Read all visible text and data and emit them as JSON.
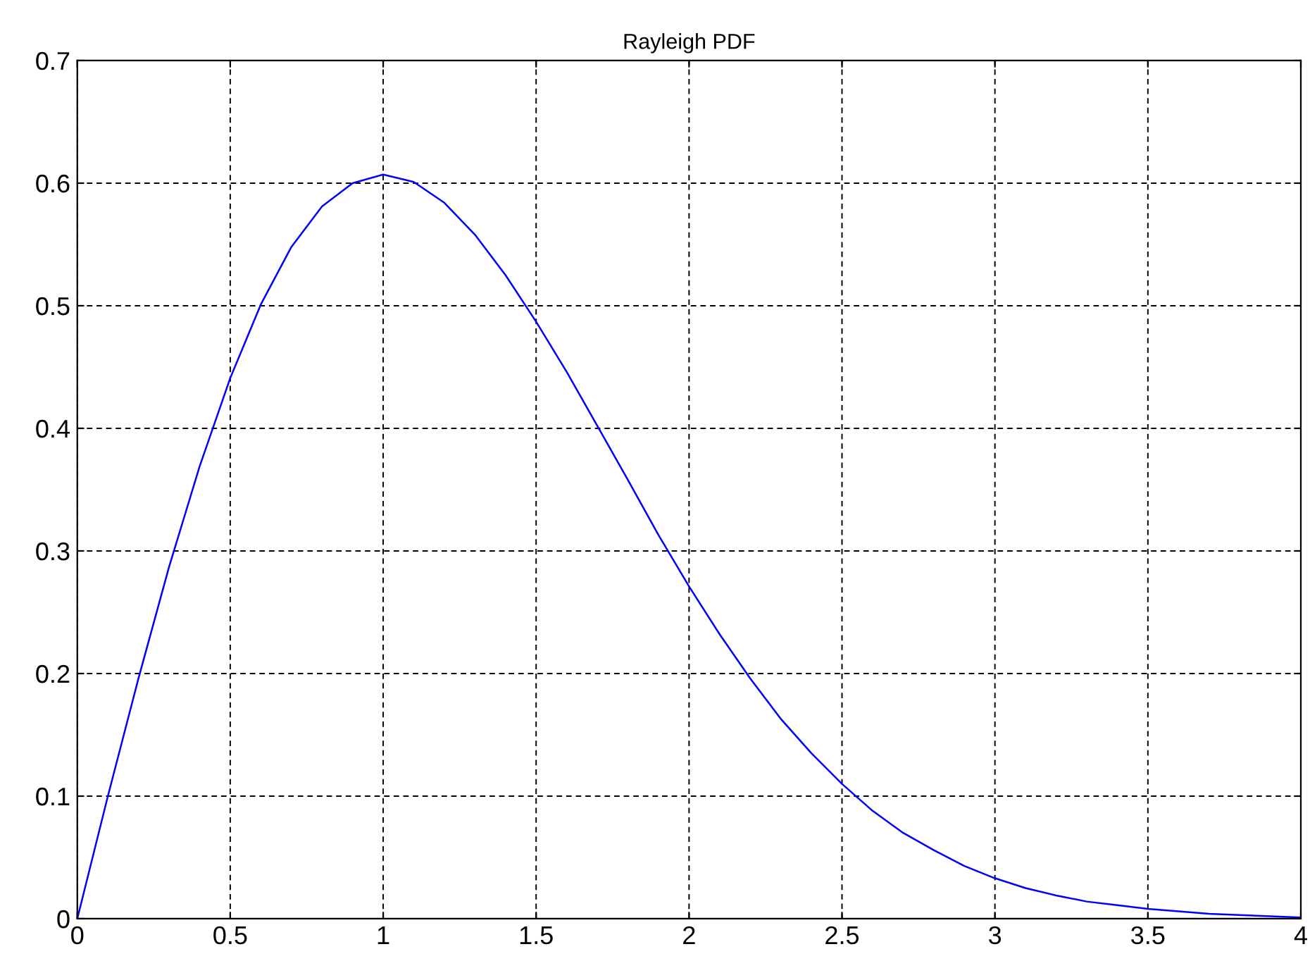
{
  "chart_data": {
    "type": "line",
    "title": "Rayleigh PDF",
    "x": [
      0,
      0.1,
      0.2,
      0.3,
      0.4,
      0.5,
      0.6,
      0.7,
      0.8,
      0.9,
      1.0,
      1.1,
      1.2,
      1.3,
      1.4,
      1.5,
      1.6,
      1.7,
      1.8,
      1.9,
      2.0,
      2.1,
      2.2,
      2.3,
      2.4,
      2.5,
      2.6,
      2.7,
      2.8,
      2.9,
      3.0,
      3.1,
      3.2,
      3.3,
      3.4,
      3.5,
      3.6,
      3.7,
      3.8,
      3.9,
      4.0
    ],
    "series": [
      {
        "color": "#0000ff",
        "values": [
          0,
          0.1,
          0.196,
          0.287,
          0.369,
          0.441,
          0.501,
          0.548,
          0.581,
          0.6,
          0.607,
          0.601,
          0.584,
          0.558,
          0.525,
          0.487,
          0.446,
          0.402,
          0.358,
          0.313,
          0.271,
          0.232,
          0.196,
          0.163,
          0.135,
          0.11,
          0.088,
          0.07,
          0.056,
          0.043,
          0.033,
          0.025,
          0.019,
          0.014,
          0.011,
          0.008,
          0.006,
          0.004,
          0.003,
          0.002,
          0.001
        ]
      }
    ],
    "xlim": [
      0,
      4
    ],
    "xticks": [
      0,
      0.5,
      1,
      1.5,
      2,
      2.5,
      3,
      3.5,
      4
    ],
    "ylim": [
      0,
      0.7
    ],
    "yticks": [
      0,
      0.1,
      0.2,
      0.3,
      0.4,
      0.5,
      0.6,
      0.7
    ],
    "grid": true,
    "marker": "none",
    "line_style": "solid",
    "legend": false
  }
}
